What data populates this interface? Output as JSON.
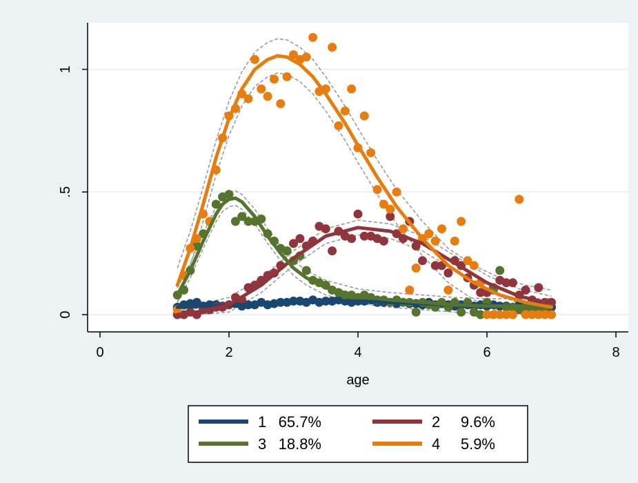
{
  "chart_data": {
    "type": "scatter",
    "title": "",
    "xlabel": "age",
    "ylabel": "",
    "xlim": [
      0,
      8
    ],
    "ylim": [
      0,
      1.17
    ],
    "x_ticks": [
      {
        "value": 0,
        "label": "0"
      },
      {
        "value": 2,
        "label": "2"
      },
      {
        "value": 4,
        "label": "4"
      },
      {
        "value": 6,
        "label": "6"
      },
      {
        "value": 8,
        "label": "8"
      }
    ],
    "y_ticks": [
      {
        "value": 0,
        "label": "0"
      },
      {
        "value": 0.5,
        "label": ".5"
      },
      {
        "value": 1,
        "label": "1"
      }
    ],
    "grid": "horizontal",
    "legend_position": "bottom",
    "series": [
      {
        "name": "1",
        "share": "65.7%",
        "color": "#1a476f",
        "fitted": [
          [
            1.2,
            0.03
          ],
          [
            1.5,
            0.033
          ],
          [
            2.0,
            0.038
          ],
          [
            2.5,
            0.045
          ],
          [
            3.0,
            0.052
          ],
          [
            3.5,
            0.056
          ],
          [
            4.0,
            0.055
          ],
          [
            4.5,
            0.05
          ],
          [
            5.0,
            0.045
          ],
          [
            5.5,
            0.04
          ],
          [
            6.0,
            0.037
          ],
          [
            6.5,
            0.035
          ],
          [
            7.0,
            0.035
          ]
        ],
        "band_offset": 0.008,
        "points": [
          [
            1.2,
            0.03
          ],
          [
            1.3,
            0.04
          ],
          [
            1.4,
            0.045
          ],
          [
            1.5,
            0.05
          ],
          [
            1.6,
            0.035
          ],
          [
            1.7,
            0.04
          ],
          [
            1.8,
            0.04
          ],
          [
            1.9,
            0.035
          ],
          [
            2.0,
            0.04
          ],
          [
            2.1,
            0.045
          ],
          [
            2.2,
            0.035
          ],
          [
            2.3,
            0.04
          ],
          [
            2.4,
            0.04
          ],
          [
            2.5,
            0.05
          ],
          [
            2.6,
            0.04
          ],
          [
            2.7,
            0.045
          ],
          [
            2.8,
            0.05
          ],
          [
            2.9,
            0.05
          ],
          [
            3.0,
            0.055
          ],
          [
            3.1,
            0.055
          ],
          [
            3.2,
            0.05
          ],
          [
            3.3,
            0.06
          ],
          [
            3.4,
            0.05
          ],
          [
            3.5,
            0.055
          ],
          [
            3.6,
            0.055
          ],
          [
            3.7,
            0.06
          ],
          [
            3.8,
            0.055
          ],
          [
            3.9,
            0.05
          ],
          [
            4.0,
            0.055
          ],
          [
            4.1,
            0.055
          ],
          [
            4.2,
            0.06
          ],
          [
            4.3,
            0.05
          ],
          [
            4.4,
            0.05
          ],
          [
            4.5,
            0.05
          ],
          [
            4.6,
            0.045
          ],
          [
            4.7,
            0.05
          ],
          [
            4.8,
            0.045
          ],
          [
            4.9,
            0.045
          ],
          [
            5.0,
            0.04
          ],
          [
            5.1,
            0.05
          ],
          [
            5.2,
            0.04
          ],
          [
            5.3,
            0.045
          ],
          [
            5.4,
            0.04
          ],
          [
            5.5,
            0.035
          ],
          [
            5.6,
            0.04
          ],
          [
            5.7,
            0.04
          ],
          [
            5.8,
            0.035
          ],
          [
            5.9,
            0.04
          ],
          [
            6.0,
            0.035
          ],
          [
            6.1,
            0.04
          ],
          [
            6.2,
            0.035
          ],
          [
            6.3,
            0.035
          ],
          [
            6.4,
            0.03
          ],
          [
            6.5,
            0.04
          ],
          [
            6.6,
            0.035
          ],
          [
            6.7,
            0.035
          ],
          [
            6.8,
            0.04
          ],
          [
            6.9,
            0.03
          ],
          [
            7.0,
            0.03
          ]
        ]
      },
      {
        "name": "2",
        "share": "9.6%",
        "color": "#90353b",
        "fitted": [
          [
            1.2,
            0.0
          ],
          [
            1.5,
            0.01
          ],
          [
            2.0,
            0.04
          ],
          [
            2.5,
            0.12
          ],
          [
            3.0,
            0.23
          ],
          [
            3.5,
            0.32
          ],
          [
            4.0,
            0.355
          ],
          [
            4.5,
            0.34
          ],
          [
            5.0,
            0.29
          ],
          [
            5.5,
            0.21
          ],
          [
            6.0,
            0.13
          ],
          [
            6.5,
            0.075
          ],
          [
            7.0,
            0.045
          ]
        ],
        "band_offset": 0.03,
        "points": [
          [
            1.2,
            0.0
          ],
          [
            1.3,
            0.0
          ],
          [
            1.4,
            0.01
          ],
          [
            1.5,
            0.0
          ],
          [
            1.6,
            0.02
          ],
          [
            1.7,
            0.02
          ],
          [
            1.8,
            0.03
          ],
          [
            1.9,
            0.03
          ],
          [
            2.0,
            0.04
          ],
          [
            2.1,
            0.07
          ],
          [
            2.2,
            0.06
          ],
          [
            2.3,
            0.11
          ],
          [
            2.4,
            0.12
          ],
          [
            2.5,
            0.14
          ],
          [
            2.6,
            0.16
          ],
          [
            2.7,
            0.17
          ],
          [
            2.8,
            0.2
          ],
          [
            2.9,
            0.26
          ],
          [
            3.0,
            0.29
          ],
          [
            3.1,
            0.31
          ],
          [
            3.2,
            0.28
          ],
          [
            3.3,
            0.3
          ],
          [
            3.4,
            0.36
          ],
          [
            3.5,
            0.35
          ],
          [
            3.6,
            0.26
          ],
          [
            3.7,
            0.34
          ],
          [
            3.8,
            0.32
          ],
          [
            3.9,
            0.31
          ],
          [
            4.0,
            0.41
          ],
          [
            4.1,
            0.32
          ],
          [
            4.2,
            0.32
          ],
          [
            4.3,
            0.31
          ],
          [
            4.4,
            0.3
          ],
          [
            4.5,
            0.4
          ],
          [
            4.6,
            0.33
          ],
          [
            4.7,
            0.31
          ],
          [
            4.8,
            0.38
          ],
          [
            4.9,
            0.28
          ],
          [
            5.0,
            0.22
          ],
          [
            5.1,
            0.33
          ],
          [
            5.2,
            0.2
          ],
          [
            5.3,
            0.2
          ],
          [
            5.4,
            0.17
          ],
          [
            5.5,
            0.22
          ],
          [
            5.6,
            0.2
          ],
          [
            5.7,
            0.15
          ],
          [
            5.8,
            0.12
          ],
          [
            5.9,
            0.09
          ],
          [
            6.0,
            0.09
          ],
          [
            6.1,
            0.11
          ],
          [
            6.2,
            0.14
          ],
          [
            6.3,
            0.13
          ],
          [
            6.4,
            0.13
          ],
          [
            6.5,
            0.08
          ],
          [
            6.6,
            0.1
          ],
          [
            6.7,
            0.06
          ],
          [
            6.8,
            0.11
          ],
          [
            6.9,
            0.05
          ],
          [
            7.0,
            0.05
          ]
        ]
      },
      {
        "name": "3",
        "share": "18.8%",
        "color": "#55752f",
        "fitted": [
          [
            1.2,
            0.08
          ],
          [
            1.4,
            0.18
          ],
          [
            1.6,
            0.3
          ],
          [
            1.8,
            0.41
          ],
          [
            1.9,
            0.45
          ],
          [
            2.0,
            0.47
          ],
          [
            2.1,
            0.475
          ],
          [
            2.2,
            0.46
          ],
          [
            2.4,
            0.4
          ],
          [
            2.6,
            0.32
          ],
          [
            2.8,
            0.25
          ],
          [
            3.0,
            0.19
          ],
          [
            3.2,
            0.15
          ],
          [
            3.5,
            0.11
          ],
          [
            4.0,
            0.075
          ],
          [
            4.5,
            0.06
          ],
          [
            5.0,
            0.05
          ],
          [
            5.5,
            0.04
          ],
          [
            6.0,
            0.035
          ],
          [
            6.5,
            0.035
          ],
          [
            7.0,
            0.035
          ]
        ],
        "band_offset": 0.03,
        "points": [
          [
            1.2,
            0.08
          ],
          [
            1.3,
            0.1
          ],
          [
            1.4,
            0.18
          ],
          [
            1.5,
            0.28
          ],
          [
            1.6,
            0.33
          ],
          [
            1.7,
            0.38
          ],
          [
            1.8,
            0.45
          ],
          [
            1.9,
            0.48
          ],
          [
            2.0,
            0.49
          ],
          [
            2.1,
            0.38
          ],
          [
            2.2,
            0.4
          ],
          [
            2.3,
            0.38
          ],
          [
            2.4,
            0.38
          ],
          [
            2.5,
            0.39
          ],
          [
            2.6,
            0.33
          ],
          [
            2.7,
            0.3
          ],
          [
            2.8,
            0.27
          ],
          [
            2.9,
            0.26
          ],
          [
            3.0,
            0.22
          ],
          [
            3.1,
            0.24
          ],
          [
            3.2,
            0.18
          ],
          [
            3.3,
            0.14
          ],
          [
            3.4,
            0.13
          ],
          [
            3.5,
            0.12
          ],
          [
            3.6,
            0.1
          ],
          [
            3.7,
            0.09
          ],
          [
            3.8,
            0.08
          ],
          [
            3.9,
            0.08
          ],
          [
            4.0,
            0.07
          ],
          [
            4.1,
            0.08
          ],
          [
            4.2,
            0.07
          ],
          [
            4.3,
            0.06
          ],
          [
            4.4,
            0.06
          ],
          [
            4.5,
            0.05
          ],
          [
            4.6,
            0.06
          ],
          [
            4.7,
            0.05
          ],
          [
            4.8,
            0.05
          ],
          [
            4.9,
            0.01
          ],
          [
            5.0,
            0.05
          ],
          [
            5.1,
            0.04
          ],
          [
            5.2,
            0.03
          ],
          [
            5.3,
            0.05
          ],
          [
            5.4,
            0.03
          ],
          [
            5.5,
            0.05
          ],
          [
            5.6,
            0.01
          ],
          [
            5.7,
            0.05
          ],
          [
            5.8,
            0.01
          ],
          [
            5.9,
            0.0
          ],
          [
            6.0,
            0.05
          ],
          [
            6.1,
            0.1
          ],
          [
            6.2,
            0.18
          ],
          [
            6.3,
            0.03
          ],
          [
            6.4,
            0.03
          ],
          [
            6.5,
            0.02
          ],
          [
            6.6,
            0.03
          ],
          [
            6.7,
            0.02
          ],
          [
            6.8,
            0.02
          ],
          [
            6.9,
            0.02
          ],
          [
            7.0,
            0.0
          ]
        ]
      },
      {
        "name": "4",
        "share": "5.9%",
        "color": "#e87d0f",
        "fitted": [
          [
            1.2,
            0.12
          ],
          [
            1.4,
            0.27
          ],
          [
            1.6,
            0.45
          ],
          [
            1.8,
            0.64
          ],
          [
            2.0,
            0.8
          ],
          [
            2.2,
            0.92
          ],
          [
            2.4,
            1.0
          ],
          [
            2.6,
            1.04
          ],
          [
            2.75,
            1.055
          ],
          [
            2.9,
            1.05
          ],
          [
            3.1,
            1.02
          ],
          [
            3.3,
            0.97
          ],
          [
            3.5,
            0.9
          ],
          [
            3.8,
            0.78
          ],
          [
            4.0,
            0.69
          ],
          [
            4.3,
            0.56
          ],
          [
            4.6,
            0.44
          ],
          [
            5.0,
            0.31
          ],
          [
            5.4,
            0.2
          ],
          [
            5.8,
            0.13
          ],
          [
            6.2,
            0.08
          ],
          [
            6.6,
            0.05
          ],
          [
            7.0,
            0.03
          ]
        ],
        "band_offset": 0.07,
        "points": [
          [
            1.2,
            0.02
          ],
          [
            1.3,
            0.16
          ],
          [
            1.4,
            0.27
          ],
          [
            1.5,
            0.31
          ],
          [
            1.6,
            0.41
          ],
          [
            1.7,
            0.38
          ],
          [
            1.8,
            0.59
          ],
          [
            1.9,
            0.72
          ],
          [
            2.0,
            0.81
          ],
          [
            2.1,
            0.84
          ],
          [
            2.2,
            0.9
          ],
          [
            2.3,
            0.88
          ],
          [
            2.4,
            1.04
          ],
          [
            2.5,
            0.92
          ],
          [
            2.6,
            0.89
          ],
          [
            2.7,
            0.96
          ],
          [
            2.8,
            0.86
          ],
          [
            2.9,
            0.97
          ],
          [
            3.0,
            1.06
          ],
          [
            3.1,
            1.04
          ],
          [
            3.2,
            1.05
          ],
          [
            3.3,
            1.13
          ],
          [
            3.4,
            0.91
          ],
          [
            3.5,
            0.92
          ],
          [
            3.6,
            1.09
          ],
          [
            3.7,
            0.77
          ],
          [
            3.8,
            0.83
          ],
          [
            3.9,
            0.92
          ],
          [
            4.0,
            0.68
          ],
          [
            4.1,
            0.81
          ],
          [
            4.2,
            0.66
          ],
          [
            4.3,
            0.51
          ],
          [
            4.4,
            0.45
          ],
          [
            4.5,
            0.43
          ],
          [
            4.6,
            0.5
          ],
          [
            4.7,
            0.35
          ],
          [
            4.8,
            0.1
          ],
          [
            4.9,
            0.19
          ],
          [
            5.0,
            0.31
          ],
          [
            5.1,
            0.33
          ],
          [
            5.2,
            0.3
          ],
          [
            5.3,
            0.35
          ],
          [
            5.4,
            0.1
          ],
          [
            5.5,
            0.3
          ],
          [
            5.6,
            0.38
          ],
          [
            5.7,
            0.22
          ],
          [
            5.8,
            0.2
          ],
          [
            5.9,
            0.13
          ],
          [
            6.0,
            0.0
          ],
          [
            6.1,
            0.0
          ],
          [
            6.2,
            0.0
          ],
          [
            6.3,
            0.0
          ],
          [
            6.4,
            0.0
          ],
          [
            6.5,
            0.47
          ],
          [
            6.6,
            0.0
          ],
          [
            6.7,
            0.0
          ],
          [
            6.8,
            0.0
          ],
          [
            6.9,
            0.0
          ],
          [
            7.0,
            0.0
          ]
        ]
      }
    ]
  }
}
